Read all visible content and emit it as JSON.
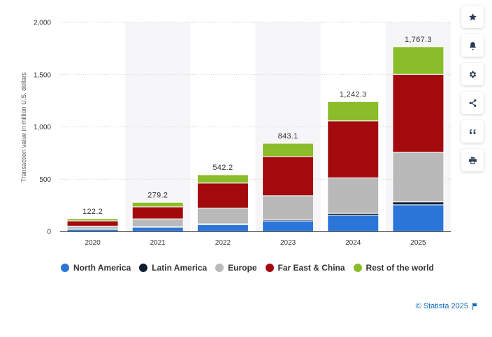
{
  "chart_data": {
    "type": "bar",
    "stacked": true,
    "categories": [
      "2020",
      "2021",
      "2022",
      "2023",
      "2024",
      "2025"
    ],
    "series": [
      {
        "name": "North America",
        "color": "#2b75d9",
        "values": [
          20,
          40,
          65,
          100,
          155,
          255
        ]
      },
      {
        "name": "Latin America",
        "color": "#0d1d33",
        "values": [
          3,
          5,
          8,
          12,
          18,
          28
        ]
      },
      {
        "name": "Europe",
        "color": "#b9b9b9",
        "values": [
          28,
          75,
          150,
          230,
          340,
          475
        ]
      },
      {
        "name": "Far East & China",
        "color": "#a30a0d",
        "values": [
          50,
          115,
          240,
          375,
          545,
          745
        ]
      },
      {
        "name": "Rest of the world",
        "color": "#8abd2a",
        "values": [
          21,
          44,
          79,
          126,
          184,
          264
        ]
      }
    ],
    "totals": [
      "122.2",
      "279.2",
      "542.2",
      "843.1",
      "1,242.3",
      "1,767.3"
    ],
    "yticks": [
      "0",
      "500",
      "1,000",
      "1,500",
      "2,000"
    ],
    "ylim": [
      0,
      2000
    ],
    "ylabel": "Transaction value in million U.S. dollars",
    "grid": true,
    "legend_position": "bottom-left"
  },
  "toolbar": [
    {
      "name": "star-icon"
    },
    {
      "name": "bell-icon"
    },
    {
      "name": "gear-icon"
    },
    {
      "name": "share-icon"
    },
    {
      "name": "quote-icon"
    },
    {
      "name": "print-icon"
    }
  ],
  "credit": {
    "text": "© Statista 2025"
  }
}
